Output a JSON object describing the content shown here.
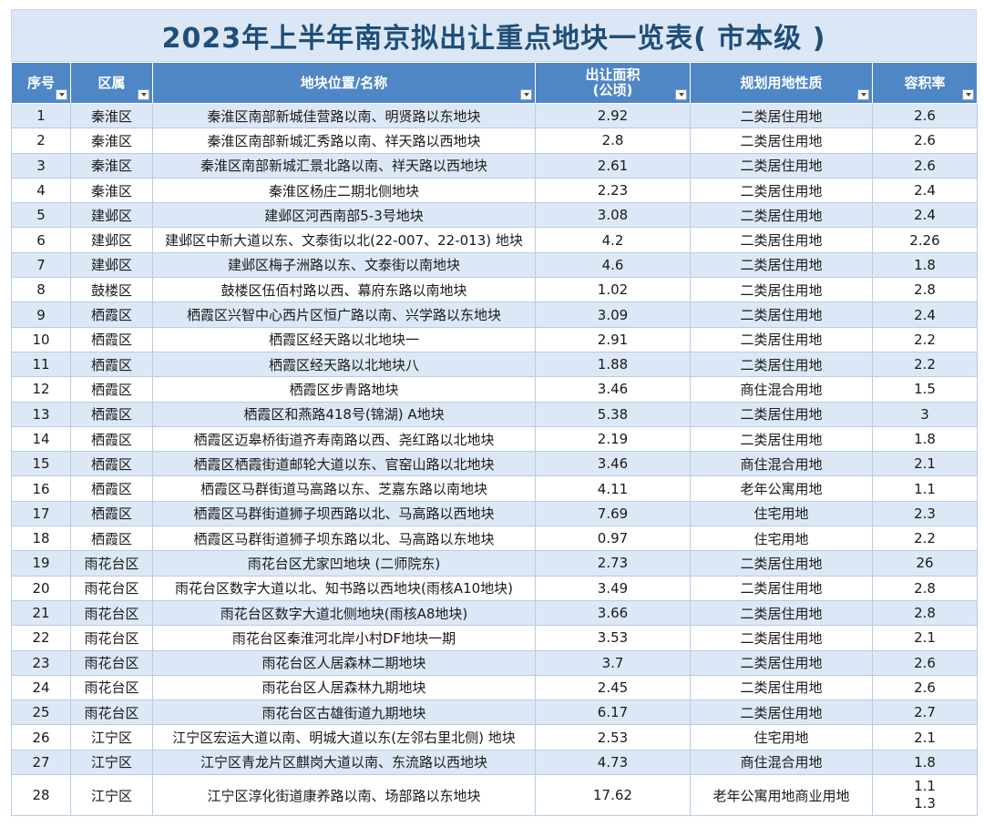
{
  "title": "2023年上半年南京拟出让重点地块一览表( 市本级 )",
  "headers": {
    "no": "序号",
    "district": "区属",
    "location": "地块位置/名称",
    "area_line1": "出让面积",
    "area_line2": "(公顷)",
    "use": "规划用地性质",
    "far": "容积率"
  },
  "rows": [
    {
      "no": "1",
      "district": "秦淮区",
      "location": "秦淮区南部新城佳营路以南、明贤路以东地块",
      "area": "2.92",
      "use": "二类居住用地",
      "far": [
        "2.6"
      ]
    },
    {
      "no": "2",
      "district": "秦淮区",
      "location": "秦淮区南部新城汇秀路以南、祥天路以西地块",
      "area": "2.8",
      "use": "二类居住用地",
      "far": [
        "2.6"
      ]
    },
    {
      "no": "3",
      "district": "秦淮区",
      "location": "秦淮区南部新城汇景北路以南、祥天路以西地块",
      "area": "2.61",
      "use": "二类居住用地",
      "far": [
        "2.6"
      ]
    },
    {
      "no": "4",
      "district": "秦淮区",
      "location": "秦淮区杨庄二期北侧地块",
      "area": "2.23",
      "use": "二类居住用地",
      "far": [
        "2.4"
      ]
    },
    {
      "no": "5",
      "district": "建邺区",
      "location": "建邺区河西南部5-3号地块",
      "area": "3.08",
      "use": "二类居住用地",
      "far": [
        "2.4"
      ]
    },
    {
      "no": "6",
      "district": "建邺区",
      "location": "建邺区中新大道以东、文泰街以北(22-007、22-013) 地块",
      "area": "4.2",
      "use": "二类居住用地",
      "far": [
        "2.26"
      ]
    },
    {
      "no": "7",
      "district": "建邺区",
      "location": "建邺区梅子洲路以东、文泰街以南地块",
      "area": "4.6",
      "use": "二类居住用地",
      "far": [
        "1.8"
      ]
    },
    {
      "no": "8",
      "district": "鼓楼区",
      "location": "鼓楼区伍佰村路以西、幕府东路以南地块",
      "area": "1.02",
      "use": "二类居住用地",
      "far": [
        "2.8"
      ]
    },
    {
      "no": "9",
      "district": "栖霞区",
      "location": "栖霞区兴智中心西片区恒广路以南、兴学路以东地块",
      "area": "3.09",
      "use": "二类居住用地",
      "far": [
        "2.4"
      ]
    },
    {
      "no": "10",
      "district": "栖霞区",
      "location": "栖霞区经天路以北地块一",
      "area": "2.91",
      "use": "二类居住用地",
      "far": [
        "2.2"
      ]
    },
    {
      "no": "11",
      "district": "栖霞区",
      "location": "栖霞区经天路以北地块八",
      "area": "1.88",
      "use": "二类居住用地",
      "far": [
        "2.2"
      ]
    },
    {
      "no": "12",
      "district": "栖霞区",
      "location": "栖霞区步青路地块",
      "area": "3.46",
      "use": "商住混合用地",
      "far": [
        "1.5"
      ]
    },
    {
      "no": "13",
      "district": "栖霞区",
      "location": "栖霞区和燕路418号(锦湖) A地块",
      "area": "5.38",
      "use": "二类居住用地",
      "far": [
        "3"
      ]
    },
    {
      "no": "14",
      "district": "栖霞区",
      "location": "栖霞区迈皋桥街道齐寿南路以西、尧红路以北地块",
      "area": "2.19",
      "use": "二类居住用地",
      "far": [
        "1.8"
      ]
    },
    {
      "no": "15",
      "district": "栖霞区",
      "location": "栖霞区栖霞街道邮轮大道以东、官窑山路以北地块",
      "area": "3.46",
      "use": "商住混合用地",
      "far": [
        "2.1"
      ]
    },
    {
      "no": "16",
      "district": "栖霞区",
      "location": "栖霞区马群街道马高路以东、芝嘉东路以南地块",
      "area": "4.11",
      "use": "老年公寓用地",
      "far": [
        "1.1"
      ]
    },
    {
      "no": "17",
      "district": "栖霞区",
      "location": "栖霞区马群街道狮子坝西路以北、马高路以西地块",
      "area": "7.69",
      "use": "住宅用地",
      "far": [
        "2.3"
      ]
    },
    {
      "no": "18",
      "district": "栖霞区",
      "location": "栖霞区马群街道狮子坝东路以北、马高路以东地块",
      "area": "0.97",
      "use": "住宅用地",
      "far": [
        "2.2"
      ]
    },
    {
      "no": "19",
      "district": "雨花台区",
      "location": "雨花台区尤家凹地块 (二师院东)",
      "area": "2.73",
      "use": "二类居住用地",
      "far": [
        "26"
      ]
    },
    {
      "no": "20",
      "district": "雨花台区",
      "location": "雨花台区数字大道以北、知书路以西地块(雨核A10地块)",
      "area": "3.49",
      "use": "二类居住用地",
      "far": [
        "2.8"
      ]
    },
    {
      "no": "21",
      "district": "雨花台区",
      "location": "雨花台区数字大道北侧地块(雨核A8地块)",
      "area": "3.66",
      "use": "二类居住用地",
      "far": [
        "2.8"
      ]
    },
    {
      "no": "22",
      "district": "雨花台区",
      "location": "雨花台区秦淮河北岸小村DF地块一期",
      "area": "3.53",
      "use": "二类居住用地",
      "far": [
        "2.1"
      ]
    },
    {
      "no": "23",
      "district": "雨花台区",
      "location": "雨花台区人居森林二期地块",
      "area": "3.7",
      "use": "二类居住用地",
      "far": [
        "2.6"
      ]
    },
    {
      "no": "24",
      "district": "雨花台区",
      "location": "雨花台区人居森林九期地块",
      "area": "2.45",
      "use": "二类居住用地",
      "far": [
        "2.6"
      ]
    },
    {
      "no": "25",
      "district": "雨花台区",
      "location": "雨花台区古雄街道九期地块",
      "area": "6.17",
      "use": "二类居住用地",
      "far": [
        "2.7"
      ]
    },
    {
      "no": "26",
      "district": "江宁区",
      "location": "江宁区宏运大道以南、明城大道以东(左邻右里北侧) 地块",
      "area": "2.53",
      "use": "住宅用地",
      "far": [
        "2.1"
      ]
    },
    {
      "no": "27",
      "district": "江宁区",
      "location": "江宁区青龙片区麒岗大道以南、东流路以西地块",
      "area": "4.73",
      "use": "商住混合用地",
      "far": [
        "1.8"
      ]
    },
    {
      "no": "28",
      "district": "江宁区",
      "location": "江宁区淳化街道康养路以南、场部路以东地块",
      "area": "17.62",
      "use": "老年公寓用地商业用地",
      "far": [
        "1.1",
        "1.3"
      ]
    }
  ],
  "colors": {
    "title_text": "#1f4e79",
    "title_bg": "#dbe7f4",
    "header_bg": "#4f87c6",
    "band_row": "#dce8f5",
    "grid": "#b7cce4"
  },
  "icons": {
    "filter": "dropdown-filter-icon"
  }
}
